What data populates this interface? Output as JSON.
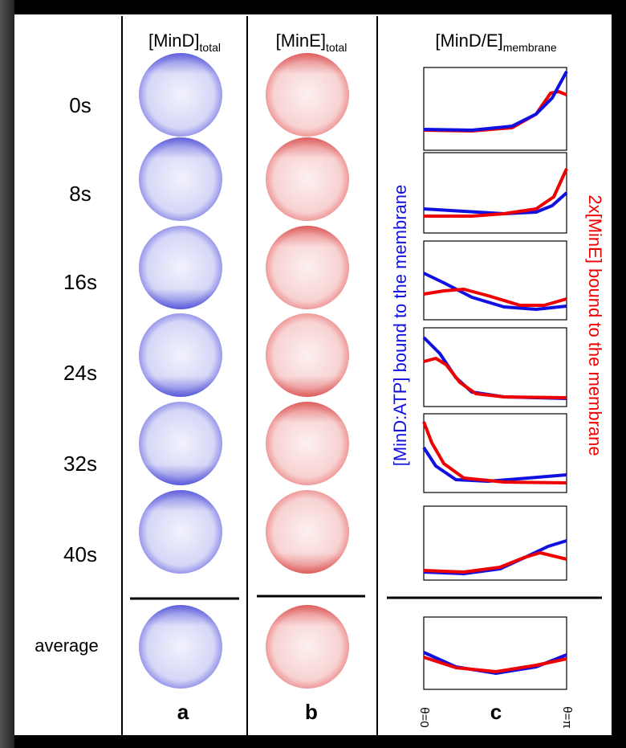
{
  "columns": [
    {
      "label": "[MinD]",
      "subscript": "total"
    },
    {
      "label": "[MinE]",
      "subscript": "total"
    },
    {
      "label": "[MinD/E]",
      "subscript": "membrane"
    }
  ],
  "rows": [
    "0s",
    "8s",
    "16s",
    "24s",
    "32s",
    "40s",
    "average"
  ],
  "panels": [
    "a",
    "b",
    "c"
  ],
  "side_labels": {
    "left": "[MinD:ATP] bound to the membrane",
    "right": "2x[MinE] bound to the membrane"
  },
  "axis_labels": {
    "start": "θ=0",
    "end": "θ=π"
  }
}
